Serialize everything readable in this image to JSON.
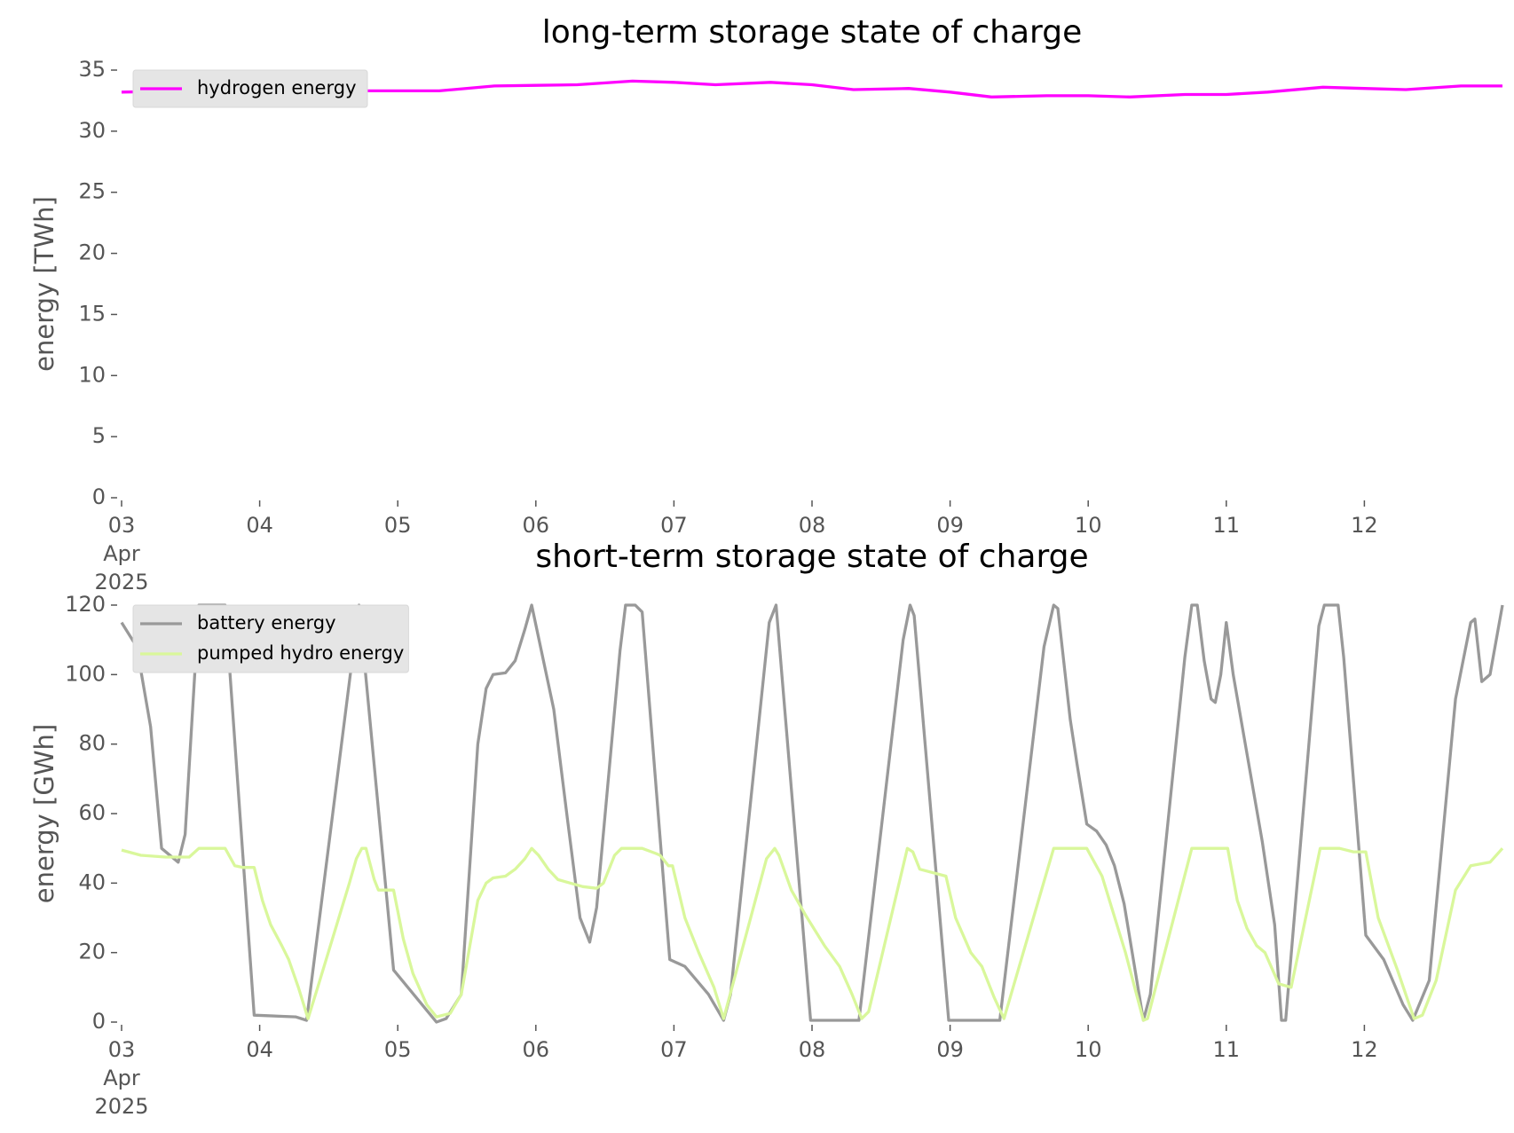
{
  "chart_data": [
    {
      "type": "line",
      "title": "long-term storage state of charge",
      "y_label": "energy [TWh]",
      "xlim": [
        3,
        13
      ],
      "xticks": [
        {
          "value": 3,
          "label": "03\nApr\n2025"
        },
        {
          "value": 4,
          "label": "04"
        },
        {
          "value": 5,
          "label": "05"
        },
        {
          "value": 6,
          "label": "06"
        },
        {
          "value": 7,
          "label": "07"
        },
        {
          "value": 8,
          "label": "08"
        },
        {
          "value": 9,
          "label": "09"
        },
        {
          "value": 10,
          "label": "10"
        },
        {
          "value": 11,
          "label": "11"
        },
        {
          "value": 12,
          "label": "12"
        }
      ],
      "ylim": [
        0,
        35
      ],
      "yticks": [
        0,
        5,
        10,
        15,
        20,
        25,
        30,
        35
      ],
      "legend": "upper left",
      "series": [
        {
          "name": "hydrogen energy",
          "color": "#ff00ff",
          "x": [
            3.0,
            3.5,
            4.0,
            4.5,
            5.0,
            5.3,
            5.7,
            6.0,
            6.3,
            6.7,
            7.0,
            7.3,
            7.7,
            8.0,
            8.3,
            8.7,
            9.0,
            9.3,
            9.7,
            10.0,
            10.3,
            10.7,
            11.0,
            11.3,
            11.7,
            12.0,
            12.3,
            12.7,
            13.0
          ],
          "values": [
            33.2,
            33.3,
            33.3,
            33.3,
            33.3,
            33.3,
            33.7,
            33.75,
            33.8,
            34.1,
            34.0,
            33.8,
            34.0,
            33.8,
            33.4,
            33.5,
            33.2,
            32.8,
            32.9,
            32.9,
            32.8,
            33.0,
            33.0,
            33.2,
            33.6,
            33.5,
            33.4,
            33.7,
            33.7
          ]
        }
      ]
    },
    {
      "type": "line",
      "title": "short-term storage state of charge",
      "y_label": "energy [GWh]",
      "xlim": [
        3,
        13
      ],
      "xticks": [
        {
          "value": 3,
          "label": "03\nApr\n2025"
        },
        {
          "value": 4,
          "label": "04"
        },
        {
          "value": 5,
          "label": "05"
        },
        {
          "value": 6,
          "label": "06"
        },
        {
          "value": 7,
          "label": "07"
        },
        {
          "value": 8,
          "label": "08"
        },
        {
          "value": 9,
          "label": "09"
        },
        {
          "value": 10,
          "label": "10"
        },
        {
          "value": 11,
          "label": "11"
        },
        {
          "value": 12,
          "label": "12"
        }
      ],
      "ylim": [
        0,
        120
      ],
      "yticks": [
        0,
        20,
        40,
        60,
        80,
        100,
        120
      ],
      "legend": "upper left",
      "series": [
        {
          "name": "battery energy",
          "color": "#999999",
          "x": [
            3.0,
            3.11,
            3.21,
            3.29,
            3.41,
            3.46,
            3.56,
            3.75,
            3.96,
            4.26,
            4.34,
            4.72,
            4.97,
            5.28,
            5.35,
            5.46,
            5.58,
            5.64,
            5.69,
            5.78,
            5.85,
            5.92,
            5.97,
            6.13,
            6.23,
            6.32,
            6.39,
            6.44,
            6.61,
            6.65,
            6.72,
            6.77,
            6.97,
            7.08,
            7.25,
            7.36,
            7.41,
            7.69,
            7.74,
            7.99,
            8.34,
            8.66,
            8.71,
            8.74,
            8.99,
            9.36,
            9.68,
            9.75,
            9.78,
            9.87,
            9.92,
            9.99,
            10.06,
            10.13,
            10.19,
            10.26,
            10.4,
            10.45,
            10.7,
            10.75,
            10.79,
            10.84,
            10.89,
            10.92,
            10.96,
            11.0,
            11.05,
            11.19,
            11.26,
            11.35,
            11.4,
            11.43,
            11.67,
            11.71,
            11.81,
            11.85,
            12.01,
            12.14,
            12.28,
            12.35,
            12.47,
            12.66,
            12.77,
            12.8,
            12.85,
            12.91,
            13.0
          ],
          "values": [
            115,
            108,
            85,
            50,
            46,
            54,
            120,
            120,
            2,
            1.5,
            0.5,
            120,
            15,
            0,
            1,
            8,
            80,
            96,
            100,
            100.5,
            104,
            113,
            120,
            90,
            58,
            30,
            23,
            33,
            107,
            120,
            120,
            118,
            18,
            16,
            8,
            0.5,
            8,
            115,
            120,
            0.5,
            0.5,
            110,
            120,
            117,
            0.5,
            0.5,
            108,
            120,
            119,
            87,
            74,
            57,
            55,
            51,
            45,
            34,
            0.5,
            8,
            105,
            120,
            120,
            104,
            93,
            92,
            100,
            115,
            100,
            68,
            52,
            28,
            0.5,
            0.5,
            114,
            120,
            120,
            105,
            25,
            18,
            5,
            0.5,
            12,
            93,
            115,
            116,
            98,
            100,
            120
          ]
        },
        {
          "name": "pumped hydro energy",
          "color": "#d9f79b",
          "x": [
            3.0,
            3.14,
            3.32,
            3.49,
            3.56,
            3.75,
            3.82,
            3.88,
            3.96,
            4.02,
            4.08,
            4.16,
            4.21,
            4.28,
            4.35,
            4.42,
            4.65,
            4.7,
            4.74,
            4.77,
            4.83,
            4.86,
            4.97,
            5.04,
            5.11,
            5.21,
            5.28,
            5.38,
            5.46,
            5.58,
            5.64,
            5.69,
            5.78,
            5.85,
            5.92,
            5.97,
            6.02,
            6.09,
            6.16,
            6.34,
            6.44,
            6.49,
            6.57,
            6.62,
            6.77,
            6.87,
            6.9,
            6.96,
            6.99,
            7.08,
            7.18,
            7.29,
            7.36,
            7.67,
            7.73,
            7.76,
            7.85,
            7.95,
            8.09,
            8.2,
            8.29,
            8.36,
            8.41,
            8.69,
            8.73,
            8.78,
            8.97,
            9.04,
            9.15,
            9.23,
            9.32,
            9.39,
            9.75,
            9.99,
            10.1,
            10.27,
            10.4,
            10.43,
            10.75,
            11.01,
            11.08,
            11.15,
            11.22,
            11.28,
            11.38,
            11.47,
            11.68,
            11.82,
            11.92,
            12.01,
            12.1,
            12.24,
            12.36,
            12.42,
            12.52,
            12.66,
            12.77,
            12.91,
            13.0
          ],
          "values": [
            49.5,
            48,
            47.5,
            47.5,
            50,
            50,
            45,
            44.5,
            44.5,
            35,
            28,
            22,
            18,
            10,
            1,
            10,
            40,
            47,
            50,
            50,
            41,
            38,
            38,
            24,
            14,
            5,
            1.5,
            2.5,
            8,
            35,
            40,
            41.5,
            42,
            44,
            47,
            50,
            48,
            44,
            41,
            39,
            38.5,
            40,
            48,
            50,
            50,
            48.5,
            48,
            45,
            45,
            30,
            20,
            10,
            1,
            47,
            50,
            48,
            38,
            31,
            22,
            16,
            8,
            1,
            3,
            50,
            49,
            44,
            42,
            30,
            20,
            16,
            7,
            1,
            50,
            50,
            42,
            20,
            0.5,
            1,
            50,
            50,
            35,
            27,
            22,
            20,
            11,
            10,
            50,
            50,
            49,
            49,
            30,
            15,
            1,
            2,
            12,
            38,
            45,
            46,
            50
          ]
        }
      ]
    }
  ]
}
